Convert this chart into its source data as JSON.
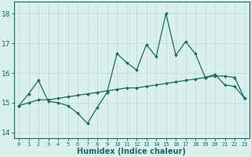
{
  "xlabel": "Humidex (Indice chaleur)",
  "x_values": [
    0,
    1,
    2,
    3,
    4,
    5,
    6,
    7,
    8,
    9,
    10,
    11,
    12,
    13,
    14,
    15,
    16,
    17,
    18,
    19,
    20,
    21,
    22,
    23
  ],
  "y_line1": [
    14.9,
    15.3,
    15.75,
    15.05,
    15.0,
    14.9,
    14.65,
    14.3,
    14.85,
    15.35,
    16.65,
    16.35,
    16.1,
    16.95,
    16.55,
    18.0,
    16.6,
    17.05,
    16.65,
    15.85,
    15.95,
    15.6,
    15.55,
    15.15
  ],
  "y_line2": [
    14.9,
    15.0,
    15.1,
    15.1,
    15.15,
    15.2,
    15.25,
    15.3,
    15.35,
    15.4,
    15.45,
    15.5,
    15.5,
    15.55,
    15.6,
    15.65,
    15.7,
    15.75,
    15.8,
    15.85,
    15.9,
    15.9,
    15.85,
    15.15
  ],
  "line_color": "#1a6b5a",
  "bg_color": "#d8f0ee",
  "grid_color": "#c8dede",
  "ylim": [
    13.8,
    18.4
  ],
  "yticks": [
    14,
    15,
    16,
    17,
    18
  ],
  "xticks": [
    0,
    1,
    2,
    3,
    4,
    5,
    6,
    7,
    8,
    9,
    10,
    11,
    12,
    13,
    14,
    15,
    16,
    17,
    18,
    19,
    20,
    21,
    22,
    23
  ],
  "xlim": [
    -0.5,
    23.5
  ]
}
